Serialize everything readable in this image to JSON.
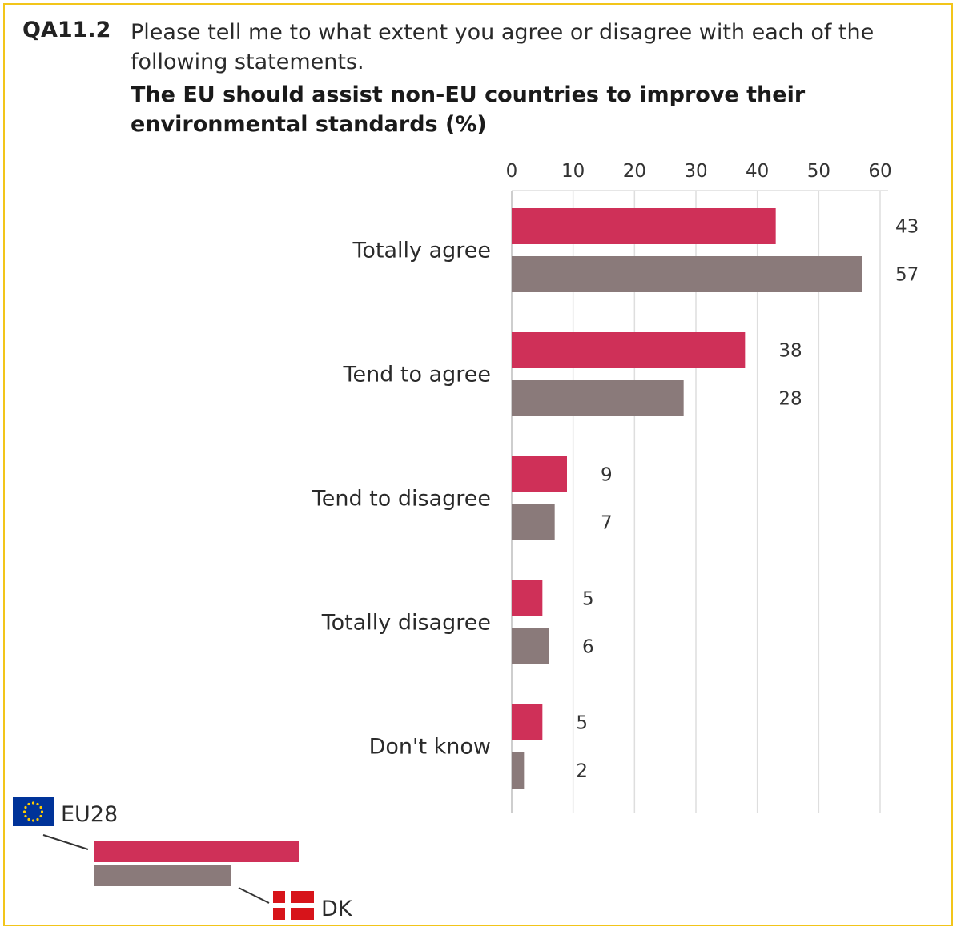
{
  "header": {
    "question_id": "QA11.2",
    "question_text": "Please tell me to what extent you agree or disagree with each of the following statements."
  },
  "chart_data": {
    "type": "bar",
    "orientation": "horizontal",
    "title": "The EU should assist non-EU countries to improve their environmental standards (%)",
    "categories": [
      "Totally agree",
      "Tend to agree",
      "Tend to disagree",
      "Totally disagree",
      "Don't know"
    ],
    "series": [
      {
        "name": "EU28",
        "color": "#cf3058",
        "values": [
          43,
          38,
          9,
          5,
          5
        ]
      },
      {
        "name": "DK",
        "color": "#8a7a7a",
        "values": [
          57,
          28,
          7,
          6,
          2
        ]
      }
    ],
    "xlim": [
      0,
      60
    ],
    "xticks": [
      0,
      10,
      20,
      30,
      40,
      50,
      60
    ],
    "grid": true,
    "axis_position": "top",
    "legend_position": "bottom-left"
  },
  "legend": {
    "eu_label": "EU28",
    "eu_icon": "eu-flag-icon",
    "dk_label": "DK",
    "dk_icon": "denmark-flag-icon"
  },
  "colors": {
    "frame_border": "#f2c51a",
    "eu_flag_blue": "#003399",
    "eu_flag_star": "#ffcc00",
    "dk_flag_red": "#d7141a"
  }
}
